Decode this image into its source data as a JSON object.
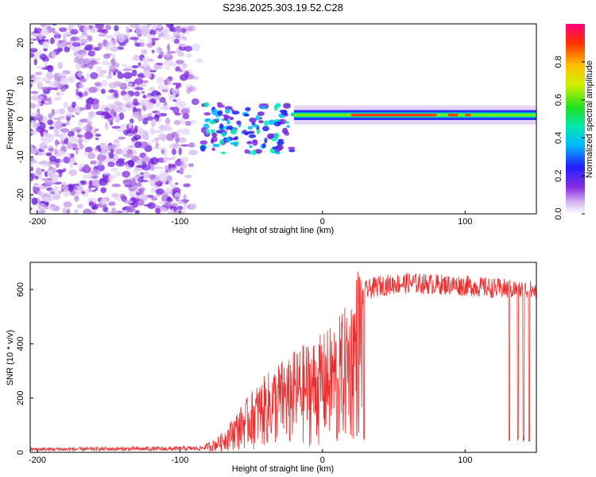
{
  "chart_data": [
    {
      "type": "heatmap",
      "title": "S236.2025.303.19.52.C28",
      "xlabel": "Height of straight line (km)",
      "ylabel": "Frequency (Hz)",
      "xlim": [
        -205,
        150
      ],
      "ylim": [
        -25,
        25
      ],
      "xticks": [
        -200,
        -100,
        0,
        100
      ],
      "yticks": [
        -20,
        -10,
        0,
        10,
        20
      ],
      "colorbar": {
        "label": "Normalized spectral amplitude",
        "range": [
          0,
          1
        ],
        "ticks": [
          0.0,
          0.2,
          0.4,
          0.6,
          0.8
        ]
      },
      "features": {
        "noise_region_x": [
          -205,
          -85
        ],
        "scatter_region_x": [
          -85,
          -20
        ],
        "signal_band_center_hz": 1,
        "stable_band_x": [
          -20,
          150
        ],
        "high_amplitude_segments_x": [
          [
            20,
            80
          ],
          [
            88,
            95
          ],
          [
            100,
            104
          ]
        ]
      }
    },
    {
      "type": "line",
      "xlabel": "Height of straight line (km)",
      "ylabel": "SNR (10 * v/v)",
      "xlim": [
        -205,
        150
      ],
      "ylim": [
        0,
        700
      ],
      "xticks": [
        -200,
        -100,
        0,
        100
      ],
      "yticks": [
        0,
        200,
        400,
        600
      ],
      "color": "#e83030",
      "series": [
        {
          "name": "SNR",
          "envelope_x": [
            -205,
            -100,
            -85,
            -75,
            -70,
            -60,
            -50,
            -40,
            -30,
            -20,
            -10,
            0,
            10,
            20,
            25,
            30,
            40,
            60,
            80,
            100,
            120,
            150
          ],
          "envelope_y": [
            15,
            18,
            20,
            40,
            60,
            120,
            180,
            230,
            270,
            300,
            330,
            350,
            390,
            460,
            560,
            620,
            640,
            650,
            645,
            640,
            630,
            620
          ],
          "dropouts_x": [
            -23,
            10,
            29,
            131,
            137,
            141,
            145
          ]
        }
      ]
    }
  ]
}
